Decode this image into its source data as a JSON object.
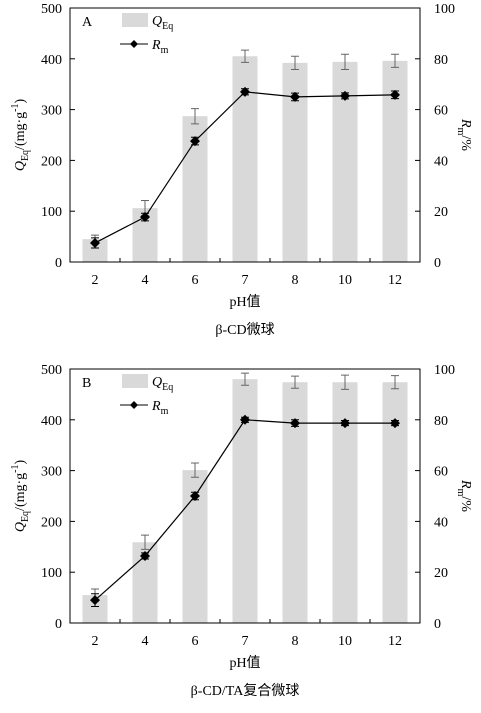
{
  "chart_data": [
    {
      "type": "bar",
      "panel": "A",
      "caption": "β-CD微球",
      "categories": [
        "2",
        "4",
        "6",
        "7",
        "8",
        "10",
        "12"
      ],
      "x_label": "pH值",
      "y_label": {
        "main": "Q",
        "sub": "Eq",
        "rest": "/(mg·g",
        "sup": "-1",
        "end": ")"
      },
      "y2_label": {
        "main": "R",
        "sub": "m",
        "rest": "/%"
      },
      "ylim": [
        0,
        500
      ],
      "yticks": [
        0,
        100,
        200,
        300,
        400,
        500
      ],
      "y2lim": [
        0,
        100
      ],
      "y2ticks": [
        0,
        20,
        40,
        60,
        80,
        100
      ],
      "series": [
        {
          "name": "Q",
          "name_sub": "Eq",
          "kind": "bar",
          "color": "#d9d9d9",
          "values": [
            45,
            106,
            287,
            405,
            392,
            394,
            396
          ],
          "errors": [
            8,
            15,
            15,
            12,
            13,
            15,
            13
          ]
        },
        {
          "name": "R",
          "name_sub": "m",
          "kind": "line",
          "axis": "y2",
          "color": "#000000",
          "values": [
            7.5,
            17.7,
            47.6,
            67,
            65,
            65.4,
            65.8
          ],
          "errors": [
            2,
            1.5,
            1.5,
            1.2,
            1.5,
            1.2,
            1.5
          ]
        }
      ]
    },
    {
      "type": "bar",
      "panel": "B",
      "caption": "β-CD/TA复合微球",
      "categories": [
        "2",
        "4",
        "6",
        "7",
        "8",
        "10",
        "12"
      ],
      "x_label": "pH值",
      "y_label": {
        "main": "Q",
        "sub": "Eq",
        "rest": "/(mg·g",
        "sup": "-1",
        "end": ")"
      },
      "y2_label": {
        "main": "R",
        "sub": "m",
        "rest": "/%"
      },
      "ylim": [
        0,
        500
      ],
      "yticks": [
        0,
        100,
        200,
        300,
        400,
        500
      ],
      "y2lim": [
        0,
        100
      ],
      "y2ticks": [
        0,
        20,
        40,
        60,
        80,
        100
      ],
      "series": [
        {
          "name": "Q",
          "name_sub": "Eq",
          "kind": "bar",
          "color": "#d9d9d9",
          "values": [
            55,
            159,
            301,
            480,
            474,
            474,
            474
          ],
          "errors": [
            12,
            14,
            14,
            12,
            12,
            14,
            13
          ]
        },
        {
          "name": "R",
          "name_sub": "m",
          "kind": "line",
          "axis": "y2",
          "color": "#000000",
          "values": [
            9,
            26.4,
            50,
            80,
            78.7,
            78.7,
            78.7
          ],
          "errors": [
            2.5,
            1.2,
            1.5,
            1,
            1.3,
            1,
            1
          ]
        }
      ]
    }
  ]
}
